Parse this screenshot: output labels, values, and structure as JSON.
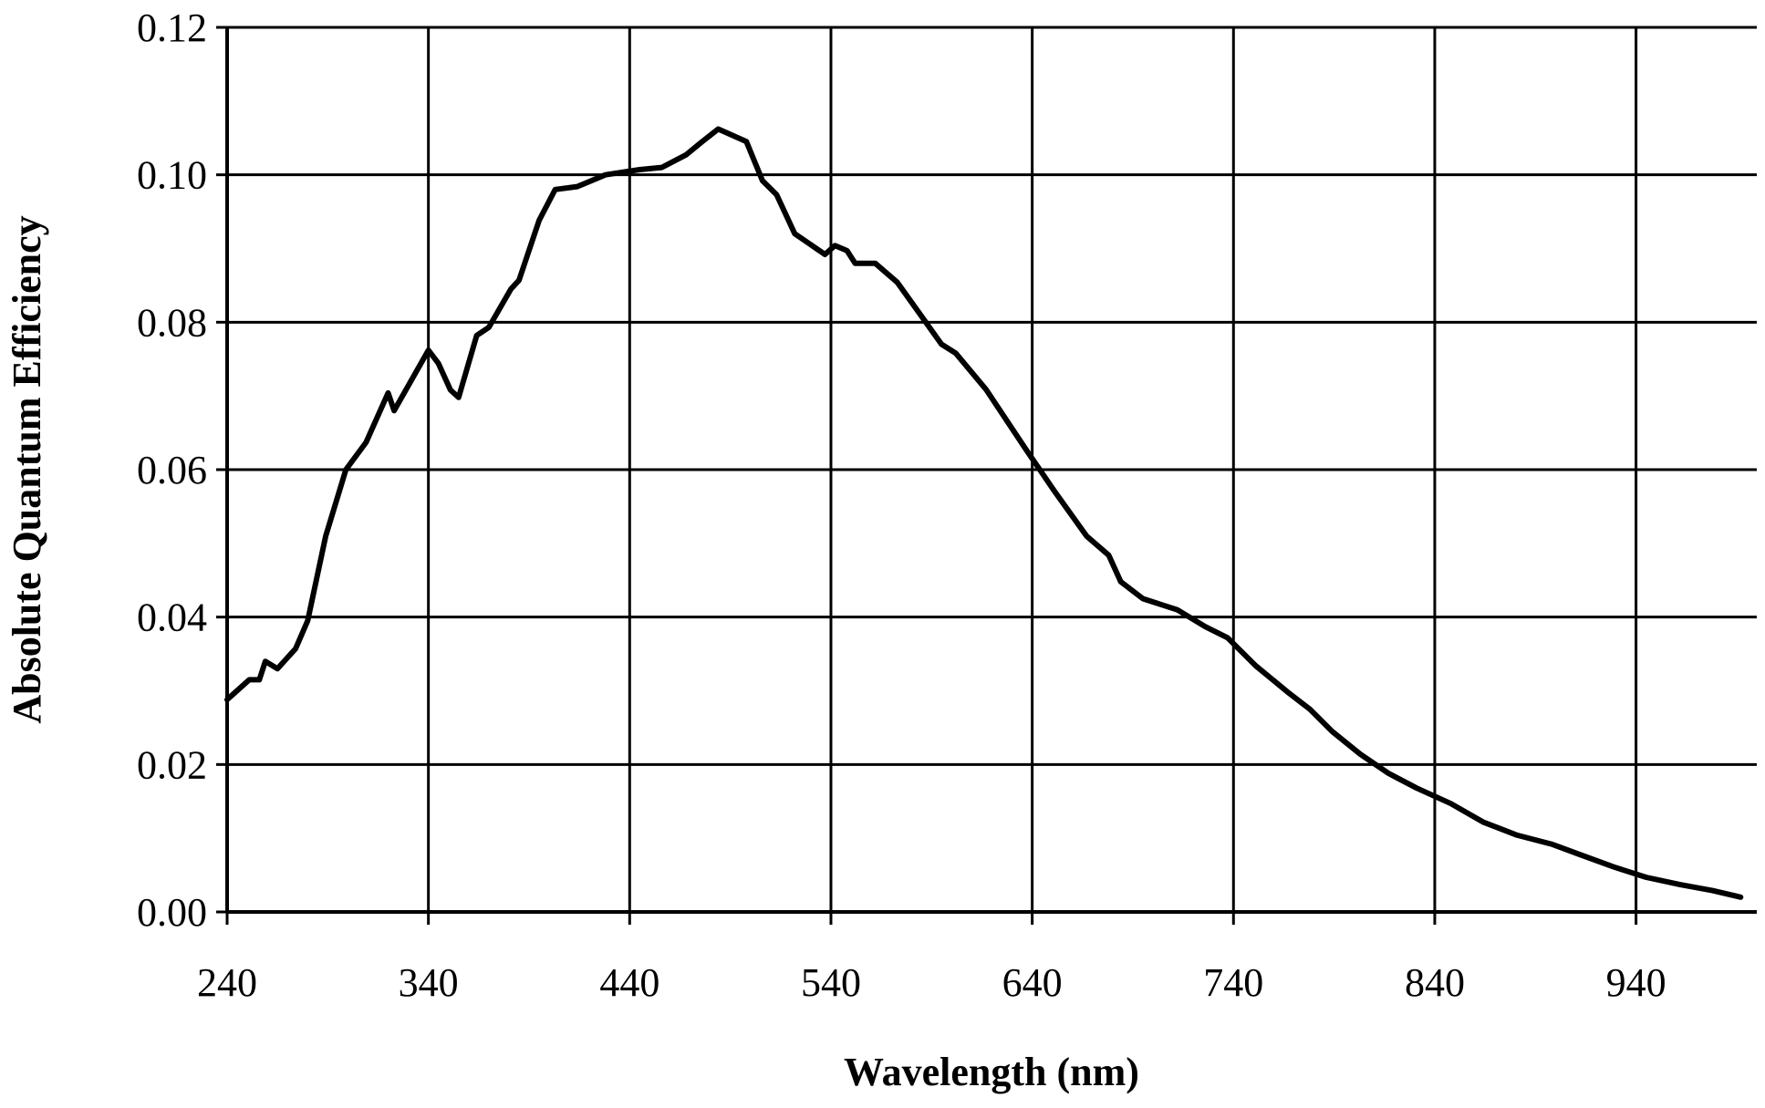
{
  "chart_data": {
    "type": "line",
    "x_label": "Wavelength (nm)",
    "y_label": "Absolute Quantum Efficiency",
    "xlim": [
      240,
      1000
    ],
    "ylim": [
      0,
      0.12
    ],
    "xticks": [
      240,
      340,
      440,
      540,
      640,
      740,
      840,
      940
    ],
    "yticks": [
      {
        "value": 0,
        "label": "0.00"
      },
      0.02,
      0.04,
      0.06,
      0.08,
      {
        "value": 0.1,
        "label": "0.10"
      },
      0.12
    ],
    "grid": true,
    "series": [
      {
        "color": "#000000",
        "x": [
          240,
          251,
          256,
          259,
          265,
          274,
          280,
          289,
          299,
          309,
          320,
          323,
          340,
          345,
          351,
          355,
          364,
          370,
          381,
          385,
          395,
          403,
          414,
          428,
          445,
          456,
          468,
          476,
          484,
          489,
          498,
          506,
          513,
          522,
          537,
          542,
          548,
          552,
          562,
          573,
          595,
          602,
          617,
          637,
          651,
          667,
          678,
          684,
          695,
          712,
          726,
          737,
          751,
          767,
          778,
          789,
          803,
          817,
          831,
          848,
          864,
          881,
          898,
          912,
          929,
          945,
          962,
          978,
          992
        ],
        "values": [
          0.0288,
          0.0315,
          0.0315,
          0.034,
          0.033,
          0.0357,
          0.0395,
          0.051,
          0.06,
          0.0637,
          0.0704,
          0.068,
          0.0762,
          0.0744,
          0.0708,
          0.0698,
          0.0782,
          0.0793,
          0.0845,
          0.0857,
          0.0938,
          0.098,
          0.0984,
          0.1,
          0.1007,
          0.101,
          0.1027,
          0.1045,
          0.1062,
          0.1056,
          0.1045,
          0.0992,
          0.0973,
          0.092,
          0.0892,
          0.0904,
          0.0897,
          0.088,
          0.088,
          0.0854,
          0.077,
          0.0758,
          0.0709,
          0.0627,
          0.0571,
          0.051,
          0.0484,
          0.0448,
          0.0425,
          0.041,
          0.0387,
          0.0372,
          0.0334,
          0.0298,
          0.0275,
          0.0245,
          0.0214,
          0.0188,
          0.0168,
          0.0147,
          0.0122,
          0.0104,
          0.0092,
          0.0078,
          0.0061,
          0.0047,
          0.0037,
          0.0029,
          0.002
        ]
      }
    ]
  }
}
